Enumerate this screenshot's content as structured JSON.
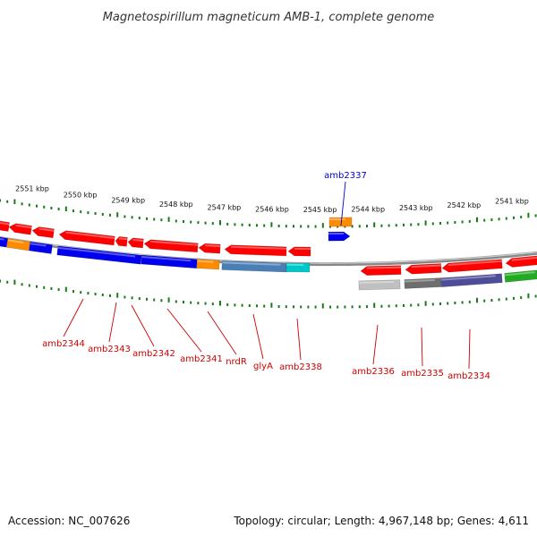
{
  "title": "Magnetospirillum magneticum AMB-1, complete genome",
  "footer": {
    "accession": "Accession: NC_007626",
    "topology": "Topology: circular; Length: 4,967,148 bp; Genes: 4,611"
  },
  "colors": {
    "backbone": "#888888",
    "tick": "#1a7a1a",
    "label_red": "#cc0000",
    "label_blue": "#0000cc",
    "red": "#ff0000",
    "blue": "#0000ee",
    "orange": "#ff8c00",
    "steelblue": "#4a7fb5",
    "cyan": "#00c8c8",
    "lightgray": "#c0c0c0",
    "darkgray": "#6e6e6e",
    "slate": "#4d4d99",
    "green": "#22aa22"
  },
  "scale": {
    "unit": "kbp",
    "labels": [
      "2551 kbp",
      "2550 kbp",
      "2549 kbp",
      "2548 kbp",
      "2547 kbp",
      "2546 kbp",
      "2545 kbp",
      "2544 kbp",
      "2543 kbp",
      "2542 kbp",
      "2541 kbp"
    ]
  },
  "gene_labels": [
    {
      "id": "amb2337",
      "text": "amb2337",
      "color": "blue"
    },
    {
      "id": "amb2344",
      "text": "amb2344",
      "color": "red"
    },
    {
      "id": "amb2343",
      "text": "amb2343",
      "color": "red"
    },
    {
      "id": "amb2342",
      "text": "amb2342",
      "color": "red"
    },
    {
      "id": "amb2341",
      "text": "amb2341",
      "color": "red"
    },
    {
      "id": "nrdR",
      "text": "nrdR",
      "color": "red"
    },
    {
      "id": "glyA",
      "text": "glyA",
      "color": "red"
    },
    {
      "id": "amb2338",
      "text": "amb2338",
      "color": "red"
    },
    {
      "id": "amb2336",
      "text": "amb2336",
      "color": "red"
    },
    {
      "id": "amb2335",
      "text": "amb2335",
      "color": "red"
    },
    {
      "id": "amb2334",
      "text": "amb2334",
      "color": "red"
    }
  ]
}
